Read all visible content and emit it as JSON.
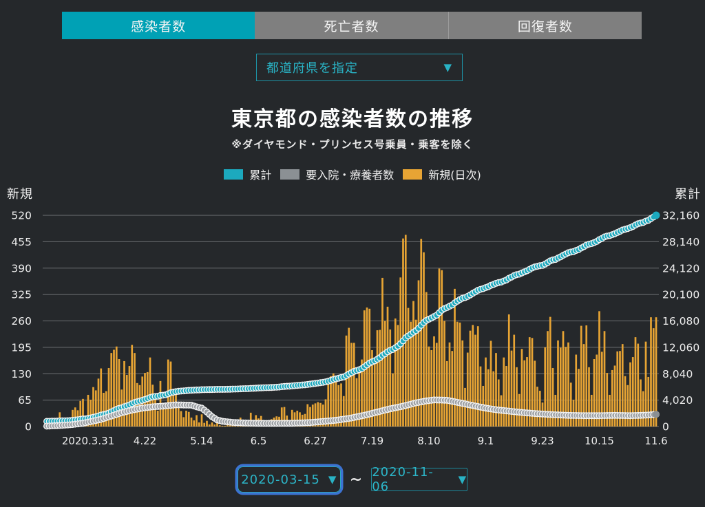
{
  "colors": {
    "background": "#25282b",
    "tab_active": "#00a1b5",
    "tab_inactive": "#7f7f7f",
    "accent_teal": "#29b2c4",
    "bar_orange": "#e7a434",
    "marker_teal": "#1ca9be",
    "marker_gray": "#9b9fa3",
    "marker_stroke": "#f2f2f2",
    "gridline": "#85888c",
    "focus_ring_blue": "#3c72d2",
    "axis_text": "#ececec"
  },
  "tabs": [
    {
      "label": "感染者数",
      "active": true
    },
    {
      "label": "死亡者数",
      "active": false
    },
    {
      "label": "回復者数",
      "active": false
    }
  ],
  "prefecture_select": {
    "value": "都道府県を指定",
    "chevron": "▼"
  },
  "title": "東京都の感染者数の推移",
  "subtitle": "※ダイヤモンド・プリンセス号乗員・乗客を除く",
  "legend": [
    {
      "label": "累計",
      "color": "#1ca9be"
    },
    {
      "label": "要入院・療養者数",
      "color": "#8b9094"
    },
    {
      "label": "新規(日次)",
      "color": "#e7a434"
    }
  ],
  "date_range": {
    "start": "2020-03-15",
    "separator": "~",
    "end": "2020-11-06",
    "chevron": "▼"
  },
  "chart_data": {
    "type": "bar",
    "title": "東京都の感染者数の推移",
    "left_axis": {
      "title": "新規",
      "ticks": [
        0,
        65,
        130,
        195,
        260,
        325,
        390,
        455,
        520
      ],
      "ylim": [
        0,
        520
      ]
    },
    "right_axis": {
      "title": "累計",
      "ticks": [
        "0",
        "4,020",
        "8,040",
        "12,060",
        "16,080",
        "20,100",
        "24,120",
        "28,140",
        "32,160"
      ],
      "ylim": [
        0,
        32160
      ]
    },
    "grid": true,
    "start_date": "2020-03-15",
    "end_date": "2020-11-06",
    "x_ticks": [
      {
        "label": "2020.3.31",
        "day": 16
      },
      {
        "label": "4.22",
        "day": 38
      },
      {
        "label": "5.14",
        "day": 60
      },
      {
        "label": "6.5",
        "day": 82
      },
      {
        "label": "6.27",
        "day": 104
      },
      {
        "label": "7.19",
        "day": 126
      },
      {
        "label": "8.10",
        "day": 148
      },
      {
        "label": "9.1",
        "day": 170
      },
      {
        "label": "9.23",
        "day": 192
      },
      {
        "label": "10.15",
        "day": 214
      },
      {
        "label": "11.6",
        "day": 236
      }
    ],
    "series": [
      {
        "name": "新規(日次)",
        "type": "bar",
        "axis": "left",
        "values": [
          2,
          12,
          15,
          9,
          7,
          35,
          7,
          3,
          16,
          17,
          41,
          47,
          40,
          63,
          68,
          13,
          78,
          66,
          97,
          89,
          118,
          143,
          83,
          87,
          144,
          181,
          189,
          197,
          166,
          91,
          161,
          127,
          149,
          201,
          181,
          107,
          102,
          123,
          132,
          134,
          170,
          103,
          72,
          39,
          112,
          47,
          46,
          165,
          160,
          93,
          87,
          58,
          38,
          23,
          39,
          36,
          22,
          15,
          28,
          10,
          30,
          9,
          14,
          5,
          10,
          5,
          11,
          3,
          2,
          2,
          14,
          8,
          10,
          11,
          15,
          22,
          14,
          5,
          13,
          34,
          12,
          28,
          20,
          26,
          14,
          13,
          12,
          18,
          22,
          25,
          24,
          47,
          48,
          27,
          16,
          41,
          35,
          39,
          35,
          29,
          31,
          55,
          48,
          54,
          57,
          60,
          58,
          54,
          67,
          107,
          124,
          131,
          111,
          102,
          106,
          75,
          224,
          243,
          206,
          206,
          119,
          143,
          165,
          286,
          293,
          290,
          188,
          168,
          237,
          238,
          366,
          260,
          295,
          239,
          131,
          266,
          250,
          367,
          463,
          472,
          292,
          258,
          309,
          263,
          360,
          462,
          429,
          331,
          197,
          188,
          222,
          206,
          389,
          385,
          260,
          161,
          207,
          186,
          339,
          258,
          256,
          212,
          95,
          182,
          236,
          250,
          226,
          247,
          148,
          100,
          170,
          141,
          211,
          136,
          181,
          116,
          77,
          170,
          149,
          276,
          187,
          226,
          146,
          80,
          191,
          163,
          171,
          220,
          218,
          162,
          98,
          88,
          59,
          195,
          235,
          270,
          144,
          78,
          212,
          194,
          235,
          196,
          207,
          108,
          66,
          177,
          142,
          248,
          203,
          249,
          146,
          78,
          166,
          177,
          284,
          184,
          235,
          132,
          78,
          139,
          150,
          185,
          186,
          203,
          124,
          102,
          158,
          171,
          220,
          204,
          116,
          87,
          209,
          122,
          269,
          242,
          269
        ]
      },
      {
        "name": "累計",
        "type": "dotted-line",
        "axis": "right",
        "derived": "cumulative_of_daily",
        "start_value": 780,
        "end_value": 32160
      },
      {
        "name": "要入院・療養者数",
        "type": "dotted-line",
        "axis": "right",
        "keypoints": [
          [
            0,
            60
          ],
          [
            5,
            150
          ],
          [
            10,
            300
          ],
          [
            14,
            500
          ],
          [
            17,
            750
          ],
          [
            21,
            1100
          ],
          [
            25,
            1600
          ],
          [
            29,
            2100
          ],
          [
            33,
            2500
          ],
          [
            37,
            2800
          ],
          [
            41,
            3000
          ],
          [
            45,
            3100
          ],
          [
            50,
            3300
          ],
          [
            56,
            3250
          ],
          [
            58,
            3000
          ],
          [
            60,
            2800
          ],
          [
            62,
            2200
          ],
          [
            64,
            1500
          ],
          [
            66,
            1000
          ],
          [
            68,
            800
          ],
          [
            72,
            620
          ],
          [
            78,
            520
          ],
          [
            85,
            480
          ],
          [
            95,
            500
          ],
          [
            102,
            600
          ],
          [
            108,
            800
          ],
          [
            113,
            1000
          ],
          [
            118,
            1300
          ],
          [
            124,
            1800
          ],
          [
            128,
            2200
          ],
          [
            133,
            2700
          ],
          [
            138,
            3100
          ],
          [
            143,
            3600
          ],
          [
            147,
            3900
          ],
          [
            150,
            4050
          ],
          [
            155,
            4000
          ],
          [
            160,
            3600
          ],
          [
            165,
            3200
          ],
          [
            170,
            2800
          ],
          [
            175,
            2500
          ],
          [
            180,
            2300
          ],
          [
            185,
            2100
          ],
          [
            190,
            1950
          ],
          [
            196,
            1800
          ],
          [
            202,
            1700
          ],
          [
            208,
            1650
          ],
          [
            214,
            1650
          ],
          [
            220,
            1700
          ],
          [
            226,
            1650
          ],
          [
            230,
            1700
          ],
          [
            233,
            1750
          ],
          [
            236,
            1850
          ]
        ]
      }
    ]
  }
}
